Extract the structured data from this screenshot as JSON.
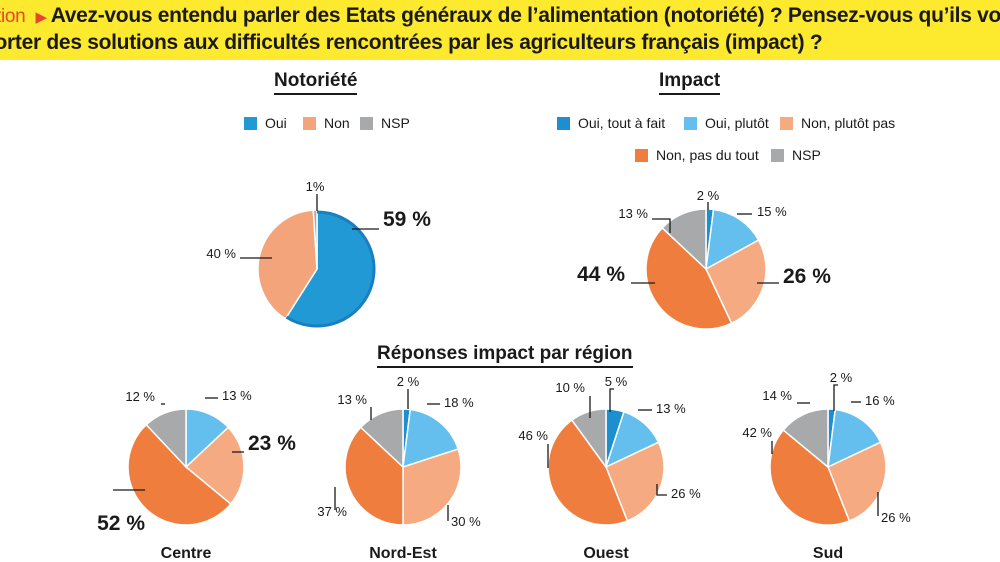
{
  "header": {
    "tag": "tion",
    "line1": "Avez-vous entendu parler des Etats généraux de l’alimentation (notoriété) ? Pensez-vous qu’ils vont",
    "line2": "porter des solutions aux difficultés rencontrées par les agriculteurs français (impact) ?"
  },
  "colors": {
    "oui": "#2199d4",
    "non": "#f4a47b",
    "nsp": "#a8a9ab",
    "oui_tout_a_fait": "#1c8fd1",
    "oui_plutot": "#64bfee",
    "non_plutot_pas": "#f5aa81",
    "non_pas_du_tout": "#ef7d3e"
  },
  "sections": {
    "notoriete": "Notoriété",
    "impact": "Impact",
    "regions": "Réponses impact par région"
  },
  "legends": {
    "notoriete": [
      "Oui",
      "Non",
      "NSP"
    ],
    "impact": [
      "Oui, tout à fait",
      "Oui, plutôt",
      "Non, plutôt pas",
      "Non, pas du tout",
      "NSP"
    ]
  },
  "chart_data": [
    {
      "type": "pie",
      "title": "Notoriété",
      "categories": [
        "Oui",
        "Non",
        "NSP"
      ],
      "values": [
        59,
        40,
        1
      ],
      "labels": [
        "59 %",
        "40 %",
        "1%"
      ]
    },
    {
      "type": "pie",
      "title": "Impact",
      "categories": [
        "Oui, tout à fait",
        "Oui, plutôt",
        "Non, plutôt pas",
        "Non, pas du tout",
        "NSP"
      ],
      "values": [
        2,
        15,
        26,
        44,
        13
      ],
      "labels": [
        "2 %",
        "15 %",
        "26 %",
        "44 %",
        "13 %"
      ]
    },
    {
      "type": "pie",
      "title": "Centre",
      "categories": [
        "Oui, tout à fait",
        "Oui, plutôt",
        "Non, plutôt pas",
        "Non, pas du tout",
        "NSP"
      ],
      "values": [
        0,
        13,
        23,
        52,
        12
      ],
      "labels": [
        "",
        "13 %",
        "23 %",
        "52 %",
        "12 %"
      ]
    },
    {
      "type": "pie",
      "title": "Nord-Est",
      "categories": [
        "Oui, tout à fait",
        "Oui, plutôt",
        "Non, plutôt pas",
        "Non, pas du tout",
        "NSP"
      ],
      "values": [
        2,
        18,
        30,
        37,
        13
      ],
      "labels": [
        "2 %",
        "18 %",
        "30 %",
        "37 %",
        "13 %"
      ]
    },
    {
      "type": "pie",
      "title": "Ouest",
      "categories": [
        "Oui, tout à fait",
        "Oui, plutôt",
        "Non, plutôt pas",
        "Non, pas du tout",
        "NSP"
      ],
      "values": [
        5,
        13,
        26,
        46,
        10
      ],
      "labels": [
        "5 %",
        "13 %",
        "26 %",
        "46 %",
        "10 %"
      ]
    },
    {
      "type": "pie",
      "title": "Sud",
      "categories": [
        "Oui, tout à fait",
        "Oui, plutôt",
        "Non, plutôt pas",
        "Non, pas du tout",
        "NSP"
      ],
      "values": [
        2,
        16,
        26,
        42,
        14
      ],
      "labels": [
        "2 %",
        "16 %",
        "26 %",
        "42 %",
        "14 %"
      ]
    }
  ]
}
